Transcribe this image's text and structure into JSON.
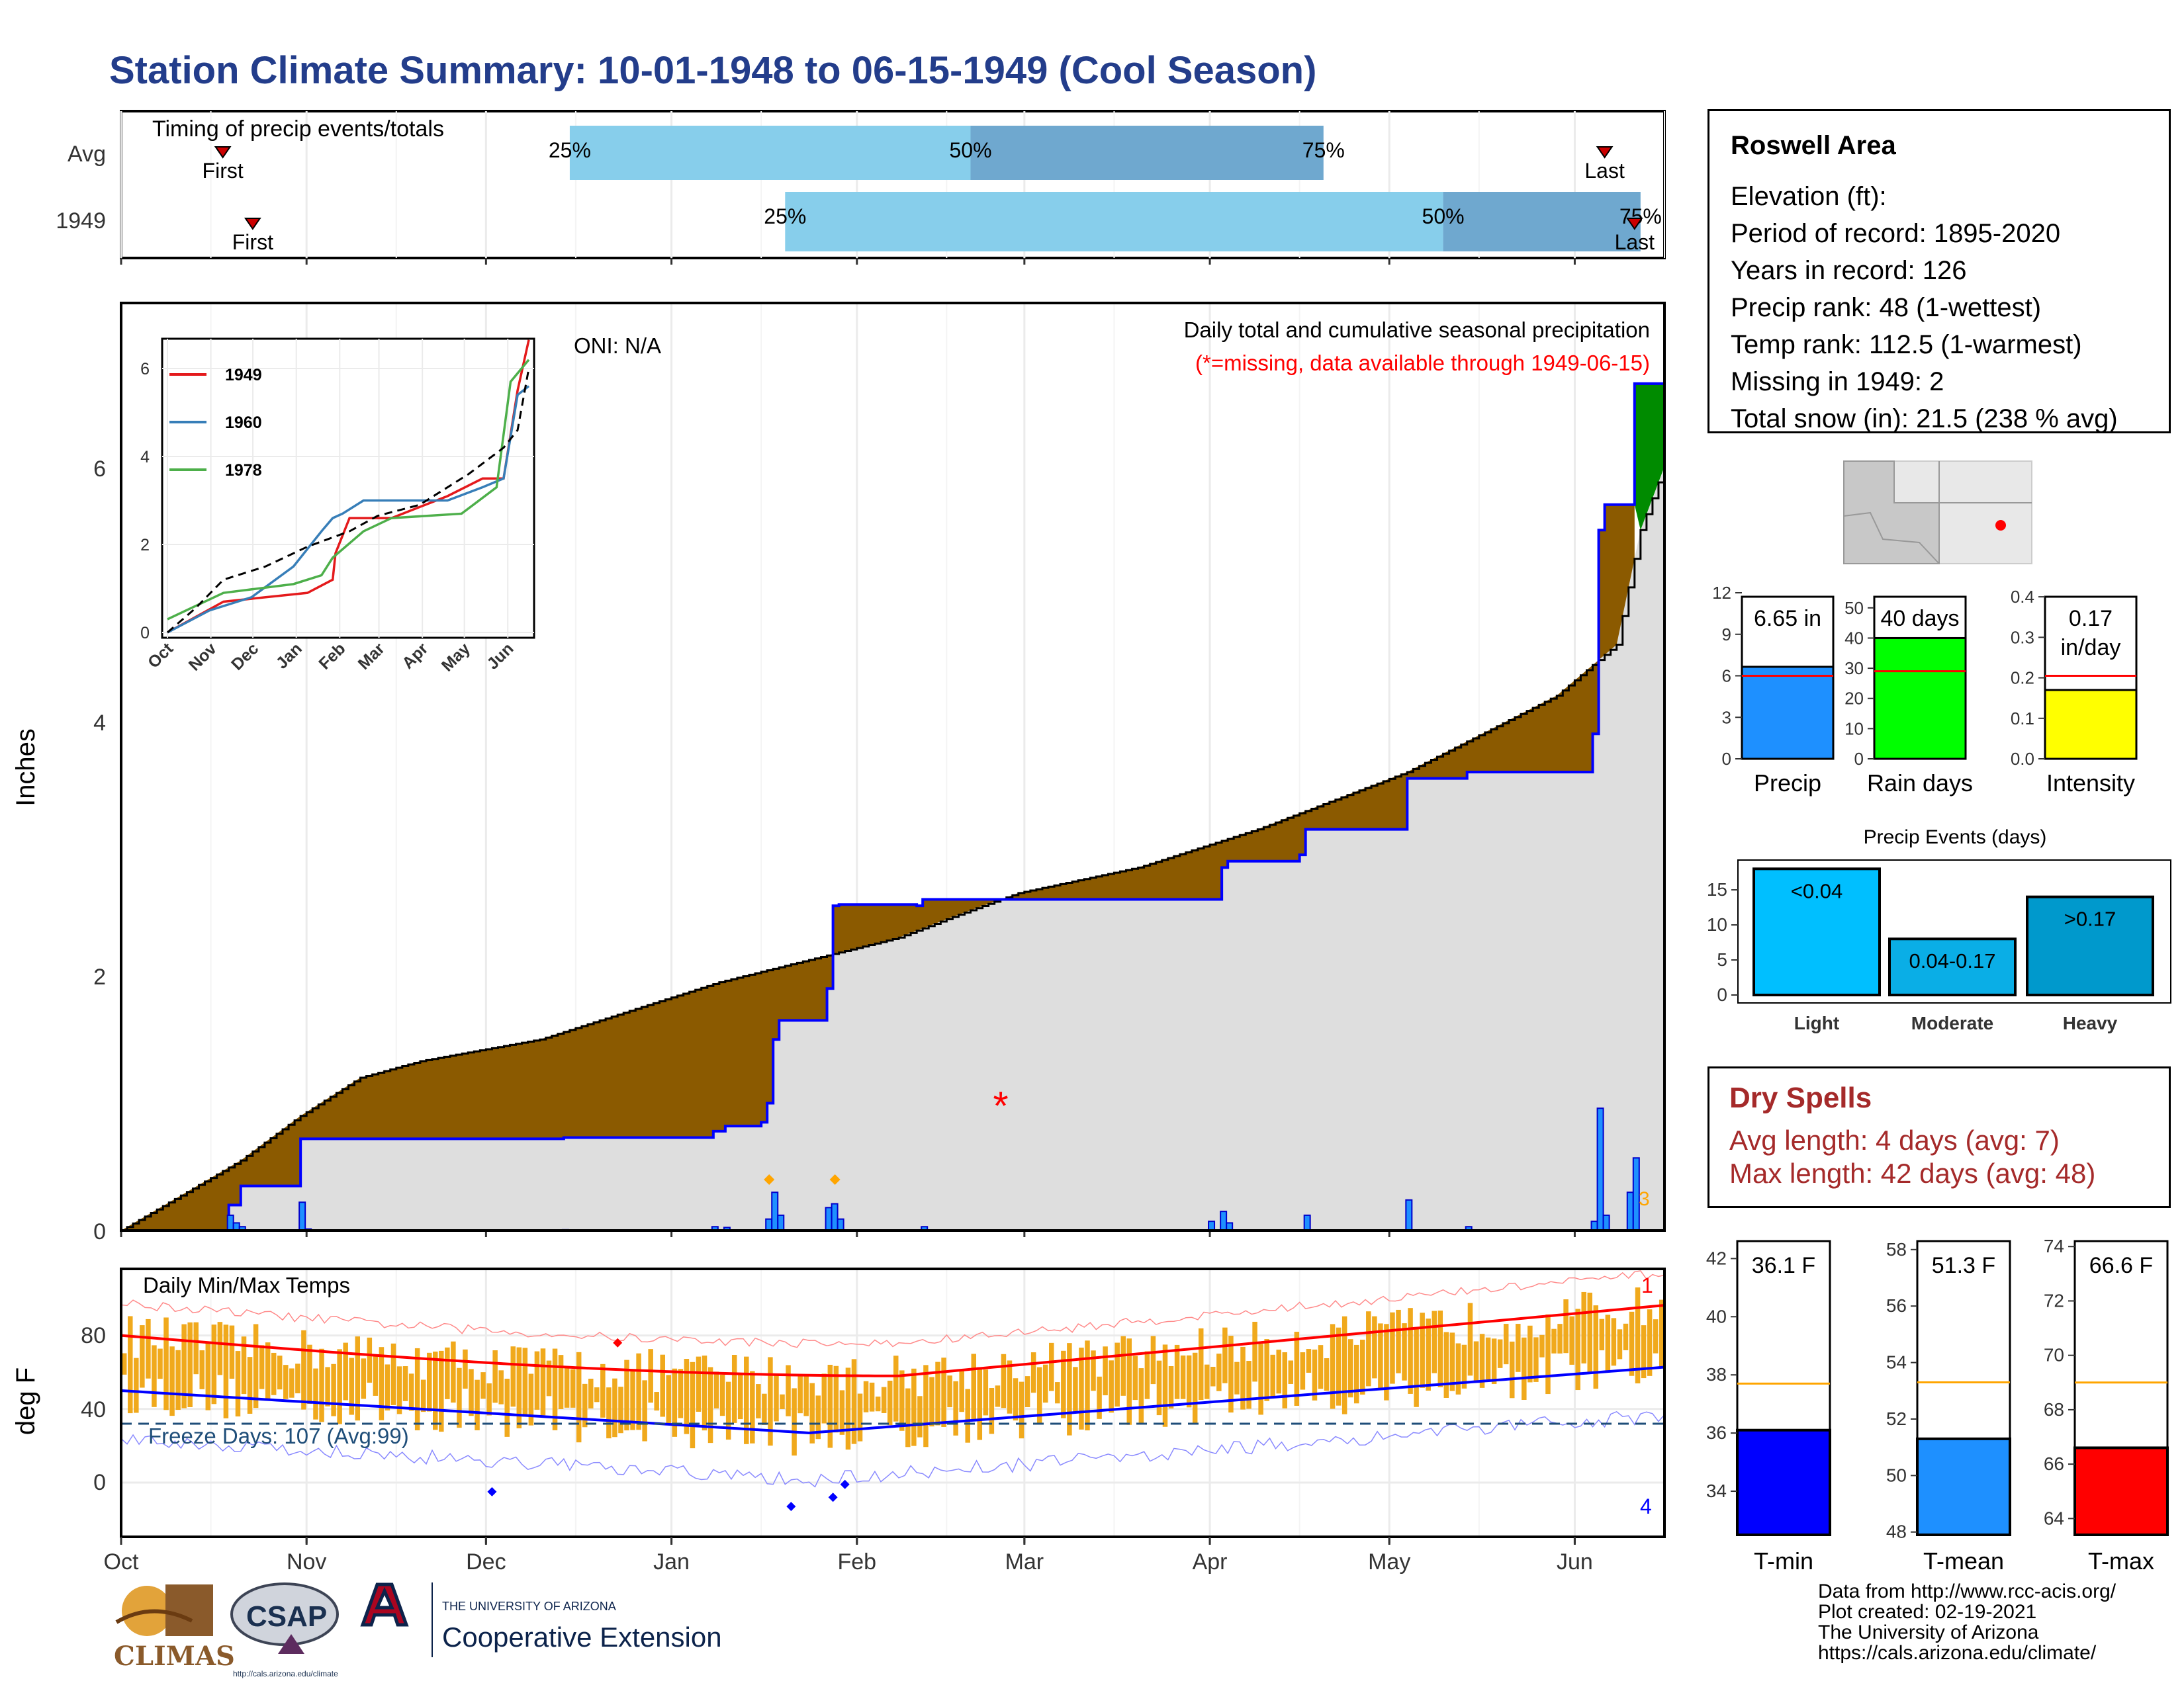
{
  "page": {
    "title": "Station Climate Summary: 10-01-1948 to 06-15-1949 (Cool Season)"
  },
  "colors": {
    "title": "#233d8b",
    "precip_area": "#8b5a00",
    "cumavg": "#dedede",
    "snow": "#008b00",
    "temp_bar": "#f0a91c",
    "tmax_avg": "#ff0000",
    "tmin_avg": "#0000ff",
    "light_blue": "#87ceeb",
    "mid_blue": "#6fa8cf"
  },
  "timing": {
    "title": "Timing of precip events/totals",
    "rows": [
      {
        "label": "Avg",
        "first_day": 17,
        "last_day": 248,
        "first_label": "First",
        "last_label": "Last",
        "q25": 75,
        "q50": 142,
        "q75": 201,
        "q25_label": "25%",
        "q50_label": "50%",
        "q75_label": "75%"
      },
      {
        "label": "1949",
        "first_day": 22,
        "last_day": 253,
        "first_label": "First",
        "last_label": "Last",
        "q25": 111,
        "q50": 221,
        "q75": 254,
        "q25_label": "25%",
        "q50_label": "50%",
        "q75_label": "75%"
      }
    ]
  },
  "precip_panel": {
    "ylabel": "Inches",
    "yticks": [
      "0",
      "2",
      "4",
      "6"
    ],
    "oni": "ONI: N/A",
    "header1": "Daily total and cumulative seasonal precipitation",
    "header2": "(*=missing, data available through 1949-06-15)",
    "missing_marker": "*",
    "end_count": "3"
  },
  "inset": {
    "yticks": [
      "0",
      "2",
      "4",
      "6"
    ],
    "months": [
      "Oct",
      "Nov",
      "Dec",
      "Jan",
      "Feb",
      "Mar",
      "Apr",
      "May",
      "Jun"
    ],
    "legend": [
      "1949",
      "1960",
      "1978"
    ],
    "legend_colors": [
      "#e41a1c",
      "#377eb8",
      "#4daf4a"
    ]
  },
  "temp_panel": {
    "ylabel": "deg F",
    "title": "Daily Min/Max Temps",
    "yticks": [
      "0",
      "40",
      "80"
    ],
    "freeze_label": "Freeze Days: 107 (Avg:99)",
    "count_top": "1",
    "count_bottom": "4"
  },
  "xaxis": {
    "months": [
      "Oct",
      "Nov",
      "Dec",
      "Jan",
      "Feb",
      "Mar",
      "Apr",
      "May",
      "Jun"
    ]
  },
  "info": {
    "title": "Roswell Area",
    "lines": [
      "Elevation (ft):",
      "Period of record: 1895-2020",
      "Years in record: 126",
      "Precip rank: 48 (1-wettest)",
      "Temp rank: 112.5 (1-warmest)",
      "Missing in 1949: 2",
      "Total snow (in): 21.5 (238 % avg)"
    ]
  },
  "stats": {
    "precip": {
      "label": "Precip",
      "value": 6.65,
      "avg": 6.0,
      "max": 12,
      "ticks": [
        "0",
        "3",
        "6",
        "9",
        "12"
      ],
      "text": "6.65 in",
      "color": "#1e90ff"
    },
    "raindays": {
      "label": "Rain days",
      "value": 40,
      "avg": 29,
      "max": 55,
      "ticks": [
        "0",
        "10",
        "20",
        "30",
        "40",
        "50"
      ],
      "text": "40 days",
      "color": "#00ff00"
    },
    "intensity": {
      "label": "Intensity",
      "value": 0.17,
      "avg": 0.205,
      "max": 0.41,
      "ticks": [
        "0.0",
        "0.1",
        "0.2",
        "0.3",
        "0.4"
      ],
      "text": "0.17",
      "text2": "in/day",
      "color": "#ffff00"
    }
  },
  "events": {
    "title": "Precip Events (days)",
    "ticks": [
      "0",
      "5",
      "10",
      "15"
    ],
    "max": 18.5,
    "bars": [
      {
        "label": "Light",
        "value": 18,
        "text": "<0.04",
        "color": "#00bfff"
      },
      {
        "label": "Moderate",
        "value": 8,
        "text": "0.04-0.17",
        "color": "#0aaee6"
      },
      {
        "label": "Heavy",
        "value": 14,
        "text": ">0.17",
        "color": "#0099cc"
      }
    ]
  },
  "dry": {
    "title": "Dry Spells",
    "avg_line": "Avg length: 4 days (avg: 7)",
    "max_line": "Max length: 42 days (avg: 48)"
  },
  "temps": {
    "tmin": {
      "label": "T-min",
      "value": 36.1,
      "avg": 37.7,
      "min": 32.5,
      "max": 42.6,
      "ticks": [
        "34",
        "36",
        "38",
        "40",
        "42"
      ],
      "text": "36.1 F",
      "color": "#0000ff"
    },
    "tmean": {
      "label": "T-mean",
      "value": 51.3,
      "avg": 53.3,
      "min": 47.9,
      "max": 58.3,
      "ticks": [
        "48",
        "50",
        "52",
        "54",
        "56",
        "58"
      ],
      "text": "51.3 F",
      "color": "#1e90ff"
    },
    "tmax": {
      "label": "T-max",
      "value": 66.6,
      "avg": 69.0,
      "min": 63.4,
      "max": 74.2,
      "ticks": [
        "64",
        "66",
        "68",
        "70",
        "72",
        "74"
      ],
      "text": "66.6 F",
      "color": "#ff0000"
    }
  },
  "logos": {
    "climas": "CLIMAS",
    "csap": "CSAP",
    "csap_url": "http://cals.arizona.edu/climate",
    "ua_small": "THE UNIVERSITY OF ARIZONA",
    "ua_big": "Cooperative Extension"
  },
  "credits": [
    "Data from http://www.rcc-acis.org/",
    "Plot created: 02-19-2021",
    "The University of Arizona",
    "https://cals.arizona.edu/climate/"
  ]
}
